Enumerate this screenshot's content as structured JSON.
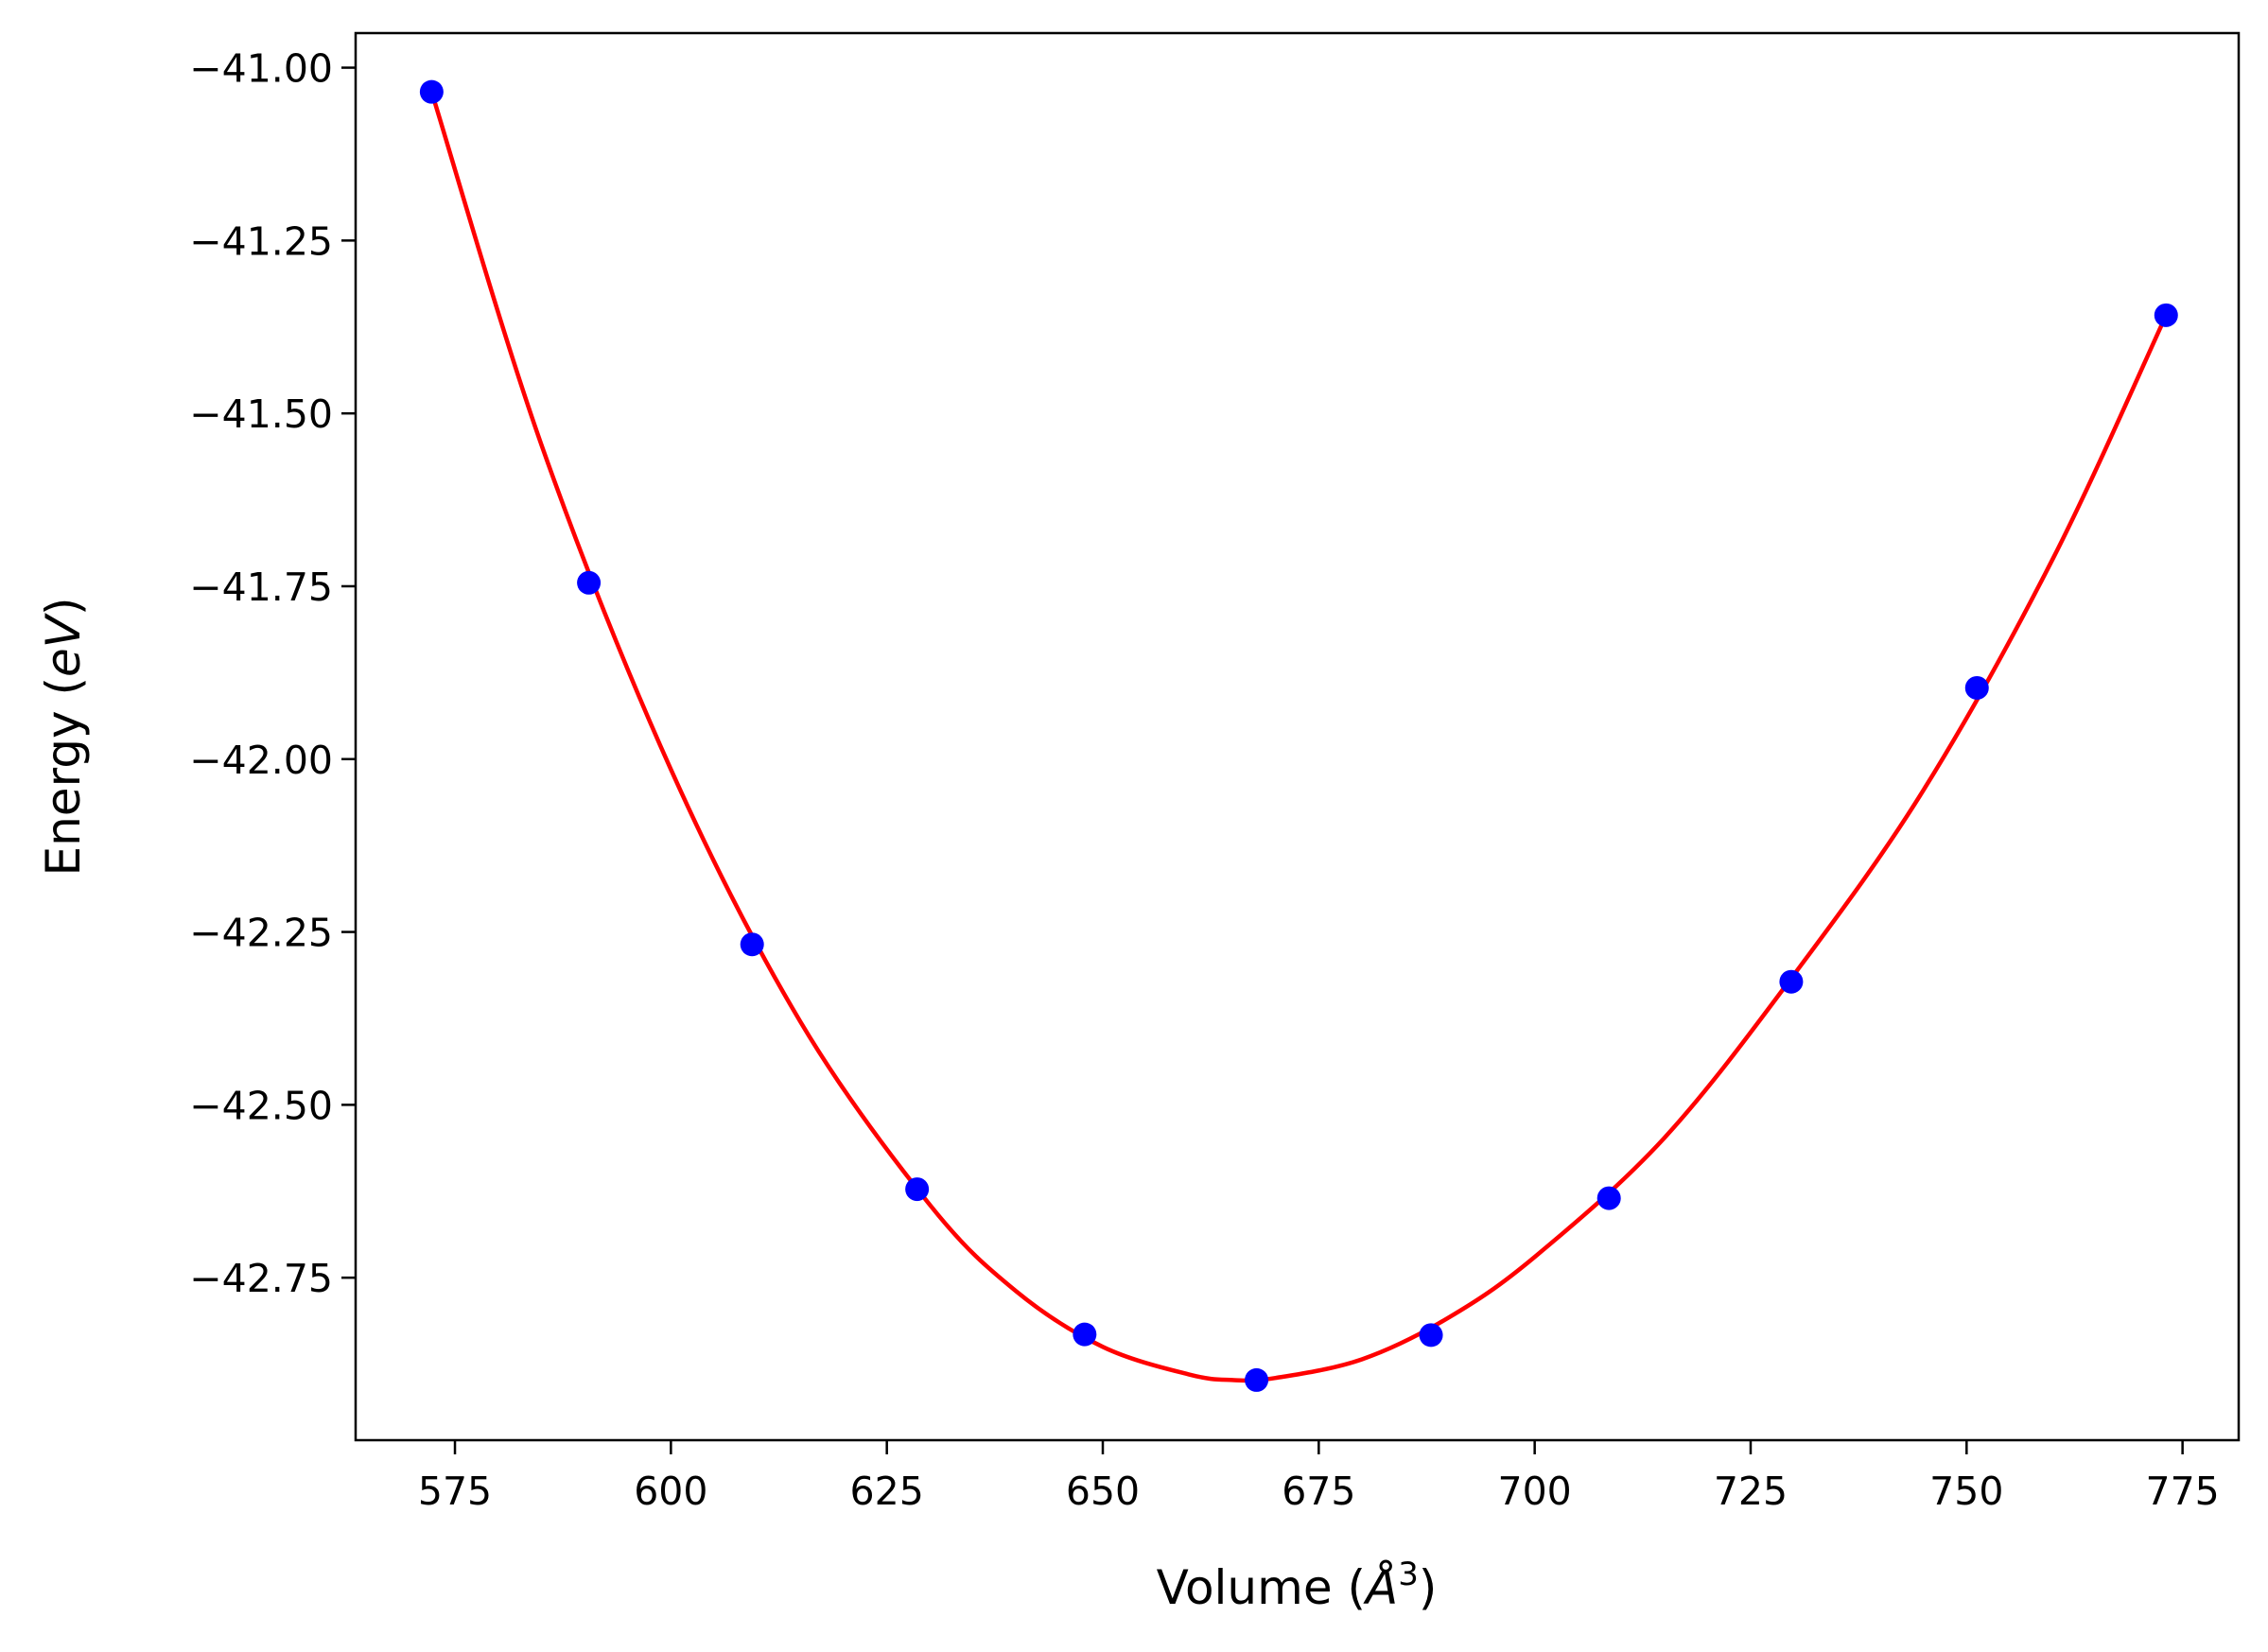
{
  "chart_data": {
    "type": "scatter",
    "title": "",
    "xlabel_parts": {
      "prefix": "Volume (",
      "unit": "Å",
      "exponent": "3",
      "suffix": ")"
    },
    "ylabel_parts": {
      "prefix": "Energy (",
      "unit": "eV",
      "suffix": ")"
    },
    "xlim": [
      563.5,
      781.5
    ],
    "ylim": [
      -42.985,
      -40.95
    ],
    "x_ticks": [
      575,
      600,
      625,
      650,
      675,
      700,
      725,
      750,
      775
    ],
    "y_ticks": [
      -41.0,
      -41.25,
      -41.5,
      -41.75,
      -42.0,
      -42.25,
      -42.5,
      -42.75
    ],
    "y_tick_labels": [
      "−41.00",
      "−41.25",
      "−41.50",
      "−41.75",
      "−42.00",
      "−42.25",
      "−42.50",
      "−42.75"
    ],
    "grid": false,
    "legend": "none",
    "series": [
      {
        "kind": "points",
        "color": "#0000ff",
        "x": [
          572.3,
          590.5,
          609.4,
          628.5,
          647.9,
          667.8,
          688.0,
          708.6,
          729.7,
          751.2,
          773.1
        ],
        "y": [
          -41.035,
          -41.745,
          -42.268,
          -42.622,
          -42.832,
          -42.898,
          -42.833,
          -42.635,
          -42.322,
          -41.897,
          -41.358
        ]
      },
      {
        "kind": "fit-curve",
        "color": "#ff0000",
        "x": [
          572.3,
          585,
          600,
          615,
          630,
          640,
          650,
          660,
          665,
          670,
          680,
          690,
          700,
          715,
          730,
          745,
          760,
          773.1
        ],
        "y": [
          -41.035,
          -41.545,
          -42.015,
          -42.38,
          -42.645,
          -42.77,
          -42.85,
          -42.89,
          -42.898,
          -42.895,
          -42.868,
          -42.808,
          -42.72,
          -42.548,
          -42.312,
          -42.045,
          -41.71,
          -41.358
        ]
      }
    ]
  }
}
